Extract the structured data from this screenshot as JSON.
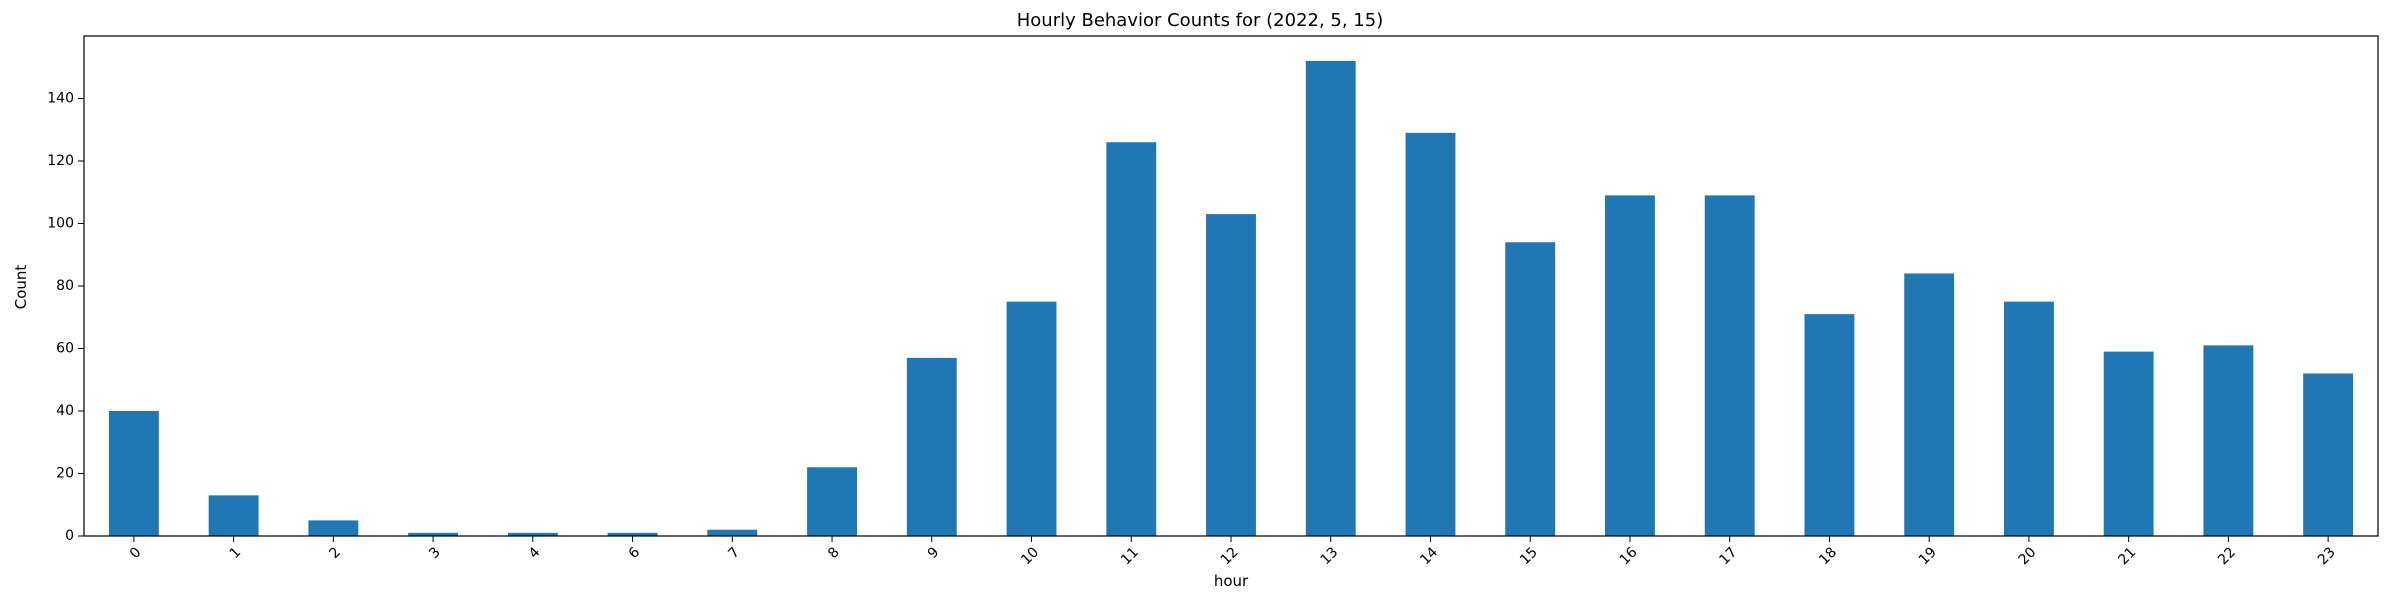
{
  "chart_data": {
    "type": "bar",
    "title": "Hourly Behavior Counts for (2022, 5, 15)",
    "xlabel": "hour",
    "ylabel": "Count",
    "categories": [
      "0",
      "1",
      "2",
      "3",
      "4",
      "6",
      "7",
      "8",
      "9",
      "10",
      "11",
      "12",
      "13",
      "14",
      "15",
      "16",
      "17",
      "18",
      "19",
      "20",
      "21",
      "22",
      "23"
    ],
    "values": [
      40,
      13,
      5,
      1,
      1,
      1,
      2,
      22,
      57,
      75,
      126,
      103,
      152,
      129,
      94,
      109,
      109,
      71,
      84,
      75,
      59,
      61,
      52
    ],
    "ylim": [
      0,
      160
    ],
    "yticks": [
      0,
      20,
      40,
      60,
      80,
      100,
      120,
      140
    ],
    "grid": false,
    "bar_color": "#1f77b4",
    "xtick_rotation": "45deg"
  }
}
